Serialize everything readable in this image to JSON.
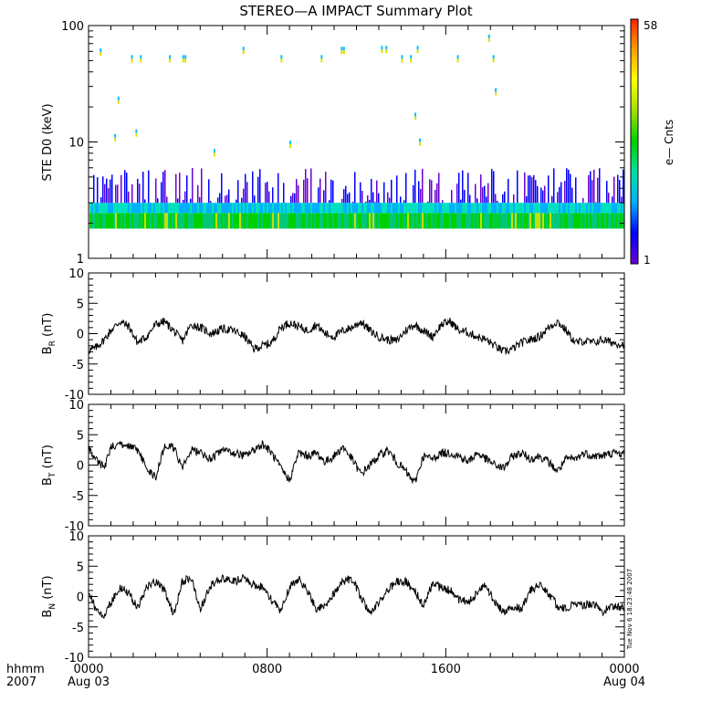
{
  "title": "STEREO—A IMPACT Summary Plot",
  "footer": {
    "hhmm_label": "hhmm",
    "year_label": "2007",
    "stamp": "Tue Nov  6 18:23:48 2007"
  },
  "colors": {
    "trace": "#000000",
    "colorbar": [
      "#6a00d0",
      "#0000ff",
      "#00b0ff",
      "#00e0a0",
      "#00d000",
      "#a0e000",
      "#ffff00",
      "#ffa000",
      "#ff2000"
    ]
  },
  "chart_data": [
    {
      "type": "heatmap",
      "panel": "spectrogram",
      "ylabel": "STE D0 (keV)",
      "yscale": "log",
      "ylim": [
        1,
        100
      ],
      "yticks": [
        "1",
        "10",
        "100"
      ],
      "colorbar": {
        "label": "e— Cnts",
        "min_label": "1",
        "max_label": "58",
        "range": [
          1,
          58
        ]
      },
      "band_low_keV": 1.8,
      "band_high_keV": 3.0,
      "sparse_top_keV": 6.0,
      "isolated_hits": [
        {
          "x": 0.5,
          "y": 57
        },
        {
          "x": 1.15,
          "y": 10.5
        },
        {
          "x": 1.3,
          "y": 22
        },
        {
          "x": 1.9,
          "y": 50
        },
        {
          "x": 2.1,
          "y": 11.5
        },
        {
          "x": 2.3,
          "y": 50
        },
        {
          "x": 3.6,
          "y": 50
        },
        {
          "x": 4.2,
          "y": 50
        },
        {
          "x": 4.3,
          "y": 50
        },
        {
          "x": 6.9,
          "y": 59
        },
        {
          "x": 8.6,
          "y": 50
        },
        {
          "x": 10.4,
          "y": 50
        },
        {
          "x": 11.3,
          "y": 59
        },
        {
          "x": 11.4,
          "y": 59
        },
        {
          "x": 13.1,
          "y": 60
        },
        {
          "x": 13.3,
          "y": 60
        },
        {
          "x": 14.0,
          "y": 50
        },
        {
          "x": 14.4,
          "y": 50
        },
        {
          "x": 14.6,
          "y": 16
        },
        {
          "x": 14.7,
          "y": 60
        },
        {
          "x": 16.5,
          "y": 50
        },
        {
          "x": 17.9,
          "y": 75
        },
        {
          "x": 18.1,
          "y": 50
        },
        {
          "x": 18.2,
          "y": 26
        },
        {
          "x": 14.8,
          "y": 9.6
        },
        {
          "x": 9.0,
          "y": 9.2
        },
        {
          "x": 5.6,
          "y": 7.8
        }
      ]
    },
    {
      "type": "line",
      "panel": "br",
      "ylabel_main": "B",
      "ylabel_sub": "R",
      "ylabel_unit": "(nT)",
      "ylim": [
        -10,
        10
      ],
      "yticks": [
        "-10",
        "-5",
        "0",
        "5",
        "10"
      ],
      "series": [
        {
          "x": [
            0,
            0.3,
            0.7,
            1.0,
            1.4,
            1.8,
            2.2,
            2.6,
            3.0,
            3.4,
            3.8,
            4.2,
            4.6,
            5.0,
            5.5,
            6.0,
            6.5,
            7.0,
            7.4,
            7.8,
            8.2,
            8.6,
            9.0,
            9.4,
            9.8,
            10.2,
            10.6,
            11.0,
            11.4,
            11.8,
            12.2,
            12.6,
            13.0,
            13.4,
            13.8,
            14.2,
            14.6,
            15.0,
            15.4,
            15.8,
            16.2,
            16.6,
            17.0,
            17.4,
            17.8,
            18.2,
            18.6,
            19.0,
            19.4,
            19.8,
            20.2,
            20.6,
            21.0,
            21.4,
            21.8,
            22.2,
            22.6,
            23.0,
            23.5,
            24.0
          ],
          "values": [
            -2.8,
            -2.4,
            -1.0,
            0.5,
            2.0,
            1.2,
            -1.5,
            -0.5,
            1.5,
            2.0,
            0.5,
            -1.2,
            1.5,
            1.0,
            0.0,
            0.8,
            0.5,
            -0.5,
            -2.5,
            -2.0,
            -1.5,
            1.0,
            1.8,
            1.2,
            0.5,
            1.5,
            0.0,
            -0.5,
            0.5,
            1.0,
            2.0,
            0.5,
            -0.5,
            -1.0,
            -1.2,
            0.5,
            1.5,
            0.5,
            -0.5,
            1.5,
            2.0,
            0.5,
            0.2,
            -0.5,
            -1.0,
            -2.0,
            -3.0,
            -2.5,
            -1.5,
            -1.0,
            -0.5,
            1.0,
            2.0,
            0.5,
            -1.5,
            -1.2,
            -1.5,
            -1.0,
            -1.5,
            -1.8
          ]
        }
      ]
    },
    {
      "type": "line",
      "panel": "bt",
      "ylabel_main": "B",
      "ylabel_sub": "T",
      "ylabel_unit": "(nT)",
      "ylim": [
        -10,
        10
      ],
      "yticks": [
        "-10",
        "-5",
        "0",
        "5",
        "10"
      ],
      "series": [
        {
          "x": [
            0,
            0.3,
            0.7,
            1.0,
            1.4,
            1.8,
            2.2,
            2.6,
            3.0,
            3.4,
            3.8,
            4.2,
            4.6,
            5.0,
            5.5,
            6.0,
            6.5,
            7.0,
            7.4,
            7.8,
            8.2,
            8.6,
            9.0,
            9.4,
            9.8,
            10.2,
            10.6,
            11.0,
            11.4,
            11.8,
            12.2,
            12.6,
            13.0,
            13.4,
            13.8,
            14.2,
            14.6,
            15.0,
            15.4,
            15.8,
            16.2,
            16.6,
            17.0,
            17.4,
            17.8,
            18.2,
            18.6,
            19.0,
            19.4,
            19.8,
            20.2,
            20.6,
            21.0,
            21.4,
            21.8,
            22.2,
            22.6,
            23.0,
            23.5,
            24.0
          ],
          "values": [
            3.0,
            1.0,
            -0.5,
            3.0,
            3.5,
            3.0,
            2.5,
            -0.5,
            -2.0,
            3.0,
            3.0,
            -0.5,
            2.5,
            2.0,
            1.0,
            2.5,
            2.0,
            1.5,
            2.5,
            3.5,
            2.0,
            -0.5,
            -2.5,
            2.0,
            1.5,
            2.0,
            0.5,
            1.5,
            3.0,
            1.0,
            -1.5,
            0.0,
            1.5,
            2.5,
            0.5,
            -1.0,
            -3.0,
            1.5,
            1.0,
            2.0,
            2.0,
            1.5,
            0.5,
            2.0,
            1.0,
            0.0,
            -0.5,
            1.5,
            2.0,
            1.0,
            1.5,
            0.5,
            -1.0,
            1.0,
            1.0,
            2.0,
            1.5,
            1.5,
            2.0,
            1.8
          ]
        }
      ]
    },
    {
      "type": "line",
      "panel": "bn",
      "ylabel_main": "B",
      "ylabel_sub": "N",
      "ylabel_unit": "(nT)",
      "ylim": [
        -10,
        10
      ],
      "yticks": [
        "-10",
        "-5",
        "0",
        "5",
        "10"
      ],
      "xlim": [
        0,
        24
      ],
      "xticks": [
        {
          "x": 0,
          "label": "0000",
          "sublabel": "Aug 03"
        },
        {
          "x": 8,
          "label": "0800",
          "sublabel": ""
        },
        {
          "x": 16,
          "label": "1600",
          "sublabel": ""
        },
        {
          "x": 24,
          "label": "0000",
          "sublabel": "Aug 04"
        }
      ],
      "series": [
        {
          "x": [
            0,
            0.3,
            0.7,
            1.0,
            1.4,
            1.8,
            2.2,
            2.6,
            3.0,
            3.4,
            3.8,
            4.2,
            4.6,
            5.0,
            5.5,
            6.0,
            6.5,
            7.0,
            7.4,
            7.8,
            8.2,
            8.6,
            9.0,
            9.4,
            9.8,
            10.2,
            10.6,
            11.0,
            11.4,
            11.8,
            12.2,
            12.6,
            13.0,
            13.4,
            13.8,
            14.2,
            14.6,
            15.0,
            15.4,
            15.8,
            16.2,
            16.6,
            17.0,
            17.4,
            17.8,
            18.2,
            18.6,
            19.0,
            19.4,
            19.8,
            20.2,
            20.6,
            21.0,
            21.4,
            21.8,
            22.2,
            22.6,
            23.0,
            23.5,
            24.0
          ],
          "values": [
            1.0,
            -2.0,
            -3.0,
            -1.0,
            1.5,
            0.5,
            -2.0,
            1.5,
            2.5,
            1.0,
            -3.0,
            2.5,
            3.0,
            -2.0,
            2.0,
            3.0,
            2.5,
            3.0,
            2.0,
            1.5,
            -0.5,
            -2.5,
            1.5,
            3.0,
            1.0,
            -2.0,
            -1.5,
            0.5,
            2.5,
            3.0,
            0.0,
            -3.0,
            -1.0,
            1.0,
            2.5,
            2.5,
            1.0,
            -1.5,
            2.0,
            1.5,
            1.0,
            -0.5,
            -1.0,
            0.5,
            2.0,
            -1.0,
            -2.5,
            -1.5,
            -2.0,
            1.0,
            2.0,
            0.5,
            -1.5,
            -2.0,
            -1.0,
            -1.5,
            -1.0,
            -2.5,
            -1.5,
            -2.0
          ]
        }
      ]
    }
  ]
}
